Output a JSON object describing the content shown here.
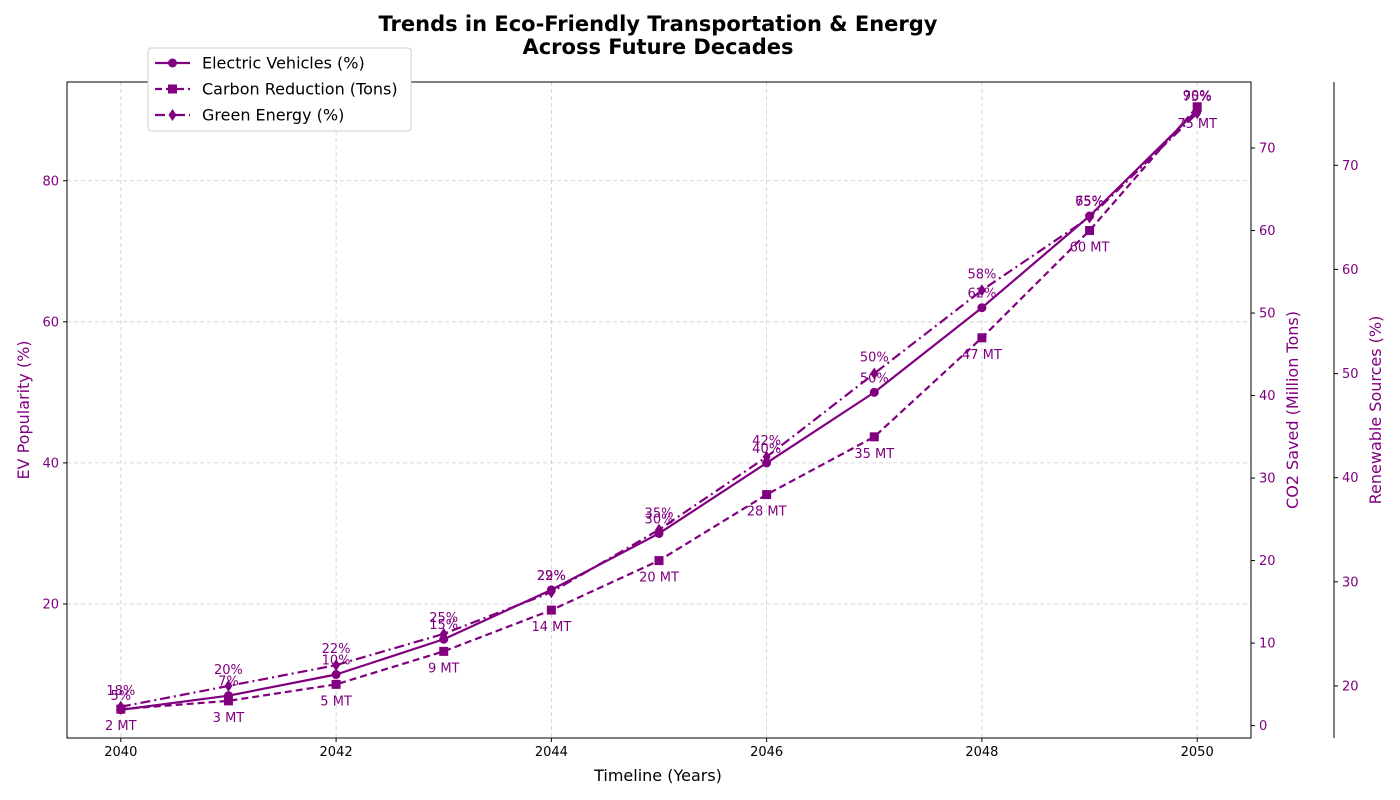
{
  "chart_data": {
    "type": "line",
    "title_line1": "Trends in Eco-Friendly Transportation & Energy",
    "title_line2": "Across Future Decades",
    "xlabel": "Timeline (Years)",
    "ylabel_left": "EV Popularity (%)",
    "ylabel_right1": "CO2 Saved (Million Tons)",
    "ylabel_right2": "Renewable Sources (%)",
    "x": [
      2040,
      2041,
      2042,
      2043,
      2044,
      2045,
      2046,
      2047,
      2048,
      2049,
      2050
    ],
    "x_ticks": [
      "2040",
      "2042",
      "2044",
      "2046",
      "2048",
      "2050"
    ],
    "y_left_ticks": [
      "20",
      "40",
      "60",
      "80"
    ],
    "y_right1_ticks": [
      "0",
      "10",
      "20",
      "30",
      "40",
      "50",
      "60",
      "70"
    ],
    "y_right2_ticks": [
      "20",
      "30",
      "40",
      "50",
      "60",
      "70"
    ],
    "xlim": [
      2039.5,
      2050.5
    ],
    "ylim_left": [
      1,
      94
    ],
    "ylim_right1": [
      -1.5,
      78
    ],
    "ylim_right2": [
      15,
      78
    ],
    "grid": true,
    "legend_position": "top-left",
    "color": "#800080",
    "series": [
      {
        "name": "Electric Vehicles (%)",
        "axis": "left",
        "values": [
          5,
          7,
          10,
          15,
          22,
          30,
          40,
          50,
          62,
          75,
          90
        ],
        "labels": [
          "5%",
          "7%",
          "10%",
          "15%",
          "22%",
          "30%",
          "40%",
          "50%",
          "62%",
          "75%",
          "90%"
        ]
      },
      {
        "name": "Carbon Reduction (Tons)",
        "axis": "right1",
        "values": [
          2,
          3,
          5,
          9,
          14,
          20,
          28,
          35,
          47,
          60,
          75
        ],
        "labels": [
          "2 MT",
          "3 MT",
          "5 MT",
          "9 MT",
          "14 MT",
          "20 MT",
          "28 MT",
          "35 MT",
          "47 MT",
          "60 MT",
          "75 MT"
        ]
      },
      {
        "name": "Green Energy (%)",
        "axis": "right2",
        "values": [
          18,
          20,
          22,
          25,
          29,
          35,
          42,
          50,
          58,
          65,
          75
        ],
        "labels": [
          "18%",
          "20%",
          "22%",
          "25%",
          "29%",
          "35%",
          "42%",
          "50%",
          "58%",
          "65%",
          "75%"
        ]
      }
    ]
  }
}
